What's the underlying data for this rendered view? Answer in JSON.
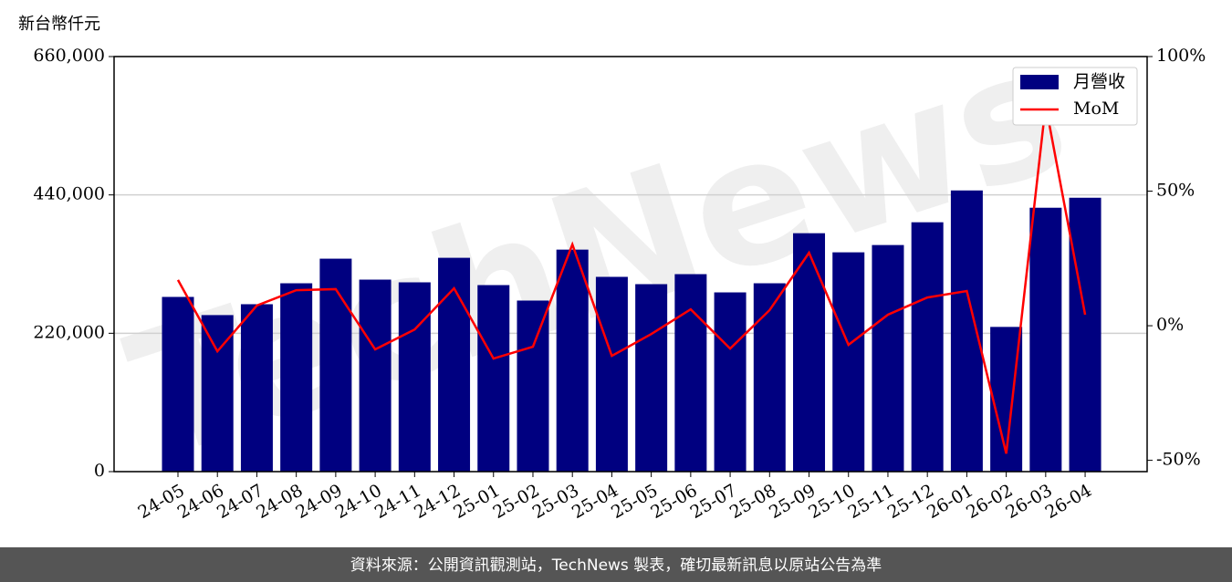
{
  "chart_data": {
    "type": "bar-line",
    "ylabel": "新台幣仟元",
    "watermark": "TechNews",
    "footer": "資料來源：公開資訊觀測站，TechNews 製表，確切最新訊息以原站公告為準",
    "categories": [
      "24-05",
      "24-06",
      "24-07",
      "24-08",
      "24-09",
      "24-10",
      "24-11",
      "24-12",
      "25-01",
      "25-02",
      "25-03",
      "25-04",
      "25-05",
      "25-06",
      "25-07",
      "25-08",
      "25-09",
      "25-10",
      "25-11",
      "25-12",
      "26-01",
      "26-02",
      "26-03",
      "26-04"
    ],
    "series": [
      {
        "name": "月營收",
        "type": "bar",
        "color": "#000080",
        "axis": "y",
        "values": [
          277800,
          248900,
          266200,
          299500,
          338600,
          305300,
          301000,
          340000,
          296600,
          272000,
          353000,
          309700,
          298100,
          314000,
          285000,
          299500,
          379100,
          348700,
          360300,
          396500,
          447100,
          230100,
          419600,
          435500
        ]
      },
      {
        "name": "MoM",
        "type": "line",
        "color": "#ff0000",
        "axis": "y2",
        "values": [
          17,
          -9.5,
          7.5,
          13.2,
          13.6,
          -8.8,
          -1.4,
          13.9,
          -12.2,
          -7.8,
          30.2,
          -11.2,
          -3.1,
          6.1,
          -8.5,
          5.8,
          27.1,
          -7.1,
          4.1,
          10.5,
          12.9,
          -47.5,
          82,
          4.1
        ]
      }
    ],
    "ylim": [
      0,
      660000
    ],
    "yticks": [
      0,
      {
        "value": 220000,
        "label": "220,000"
      },
      {
        "value": 440000,
        "label": "440,000"
      },
      {
        "value": 660000,
        "label": "660,000"
      }
    ],
    "y2lim": [
      -54.2,
      100
    ],
    "y2ticks": [
      {
        "value": -50,
        "label": "-50%"
      },
      {
        "value": 0,
        "label": "0%"
      },
      {
        "value": 50,
        "label": "50%"
      },
      {
        "value": 100,
        "label": "100%"
      }
    ],
    "grid": true,
    "legend": "upper right"
  }
}
